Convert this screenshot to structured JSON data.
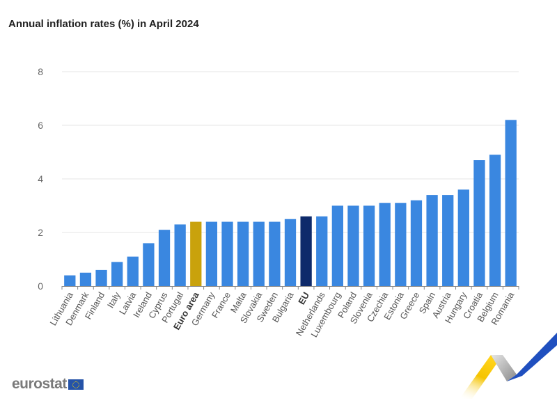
{
  "chart_data": {
    "type": "bar",
    "title": "Annual inflation rates (%) in April 2024",
    "xlabel": "",
    "ylabel": "",
    "ylim": [
      0,
      8
    ],
    "yticks": [
      0,
      2,
      4,
      6,
      8
    ],
    "grid": true,
    "categories": [
      "Lithuania",
      "Denmark",
      "Finland",
      "Italy",
      "Latvia",
      "Ireland",
      "Cyprus",
      "Portugal",
      "Euro area",
      "Germany",
      "France",
      "Malta",
      "Slovakia",
      "Sweden",
      "Bulgaria",
      "EU",
      "Netherlands",
      "Luxembourg",
      "Poland",
      "Slovenia",
      "Czechia",
      "Estonia",
      "Greece",
      "Spain",
      "Austria",
      "Hungary",
      "Croatia",
      "Belgium",
      "Romania"
    ],
    "values": [
      0.4,
      0.5,
      0.6,
      0.9,
      1.1,
      1.6,
      2.1,
      2.3,
      2.4,
      2.4,
      2.4,
      2.4,
      2.4,
      2.4,
      2.5,
      2.6,
      2.6,
      3.0,
      3.0,
      3.0,
      3.1,
      3.1,
      3.2,
      3.4,
      3.4,
      3.6,
      4.7,
      4.9,
      6.2
    ],
    "highlight": {
      "Euro area": "#c9a20c",
      "EU": "#0e2a6b"
    },
    "bold_labels": [
      "Euro area",
      "EU"
    ],
    "default_color": "#3a87e0"
  },
  "branding": {
    "logo_text": "eurostat",
    "flag_icon": "eu-flag-icon"
  }
}
